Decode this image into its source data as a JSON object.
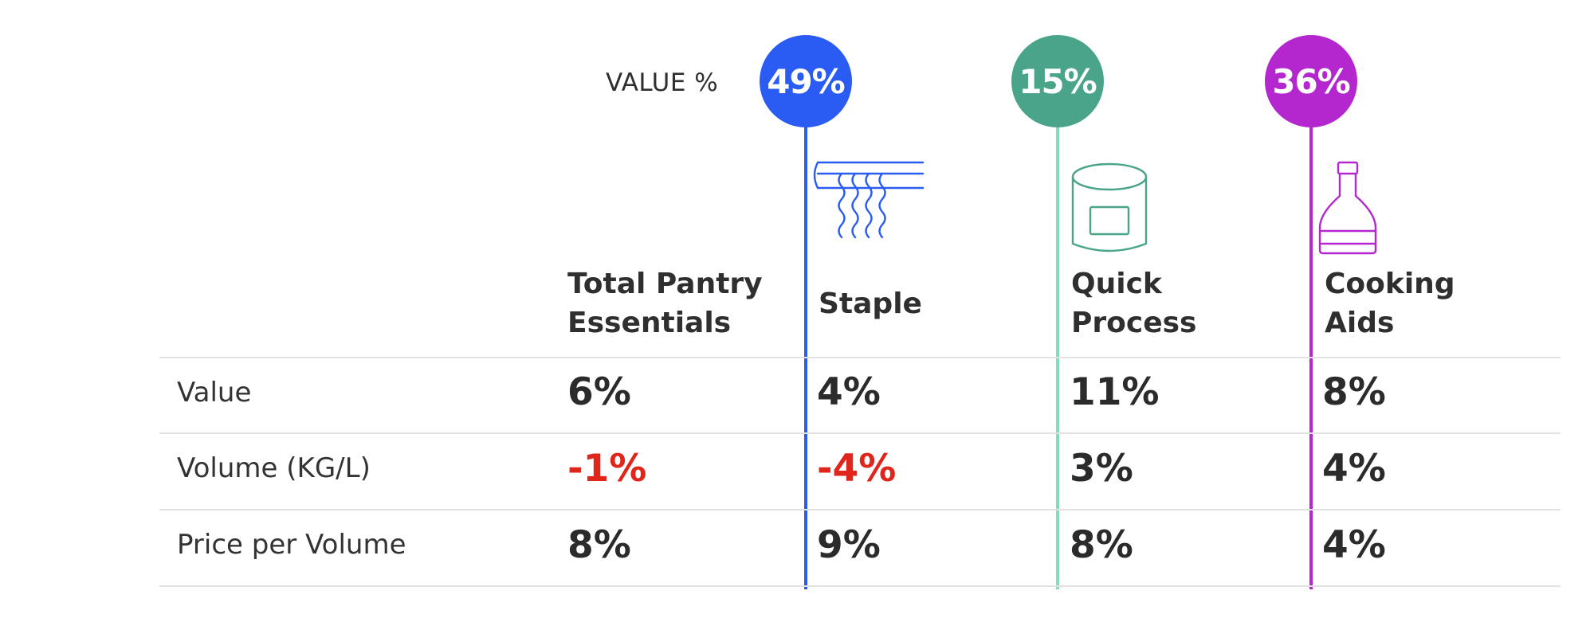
{
  "header": {
    "value_pct_label": "VALUE %"
  },
  "chart_data": {
    "type": "table",
    "columns": [
      {
        "key": "total",
        "name": "Total Pantry Essentials",
        "label_lines": [
          "Total Pantry",
          "Essentials"
        ]
      },
      {
        "key": "staple",
        "name": "Staple",
        "label_lines": [
          "Staple"
        ],
        "value_share": "49%",
        "value_share_pct": 49,
        "color": "#2a5cf4",
        "line_color": "#2a5cf4",
        "icon": "noodles-icon"
      },
      {
        "key": "quick",
        "name": "Quick Process",
        "label_lines": [
          "Quick",
          "Process"
        ],
        "value_share": "15%",
        "value_share_pct": 15,
        "color": "#4aa48a",
        "line_color": "#7ee0b8",
        "icon": "can-icon"
      },
      {
        "key": "cooking",
        "name": "Cooking Aids",
        "label_lines": [
          "Cooking",
          "Aids"
        ],
        "value_share": "36%",
        "value_share_pct": 36,
        "color": "#b427cf",
        "line_color": "#b427cf",
        "icon": "bottle-icon"
      }
    ],
    "rows": [
      {
        "label": "Value",
        "values": [
          "6%",
          "4%",
          "11%",
          "8%"
        ],
        "negative": [
          false,
          false,
          false,
          false
        ]
      },
      {
        "label": "Volume (KG/L)",
        "values": [
          "-1%",
          "-4%",
          "3%",
          "4%"
        ],
        "negative": [
          true,
          true,
          false,
          false
        ]
      },
      {
        "label": "Price per Volume",
        "values": [
          "8%",
          "9%",
          "8%",
          "4%"
        ],
        "negative": [
          false,
          false,
          false,
          false
        ]
      }
    ],
    "colors": {
      "negative": "#e0261b",
      "text": "#2a2a2a",
      "rule": "#e2e2e2"
    }
  }
}
